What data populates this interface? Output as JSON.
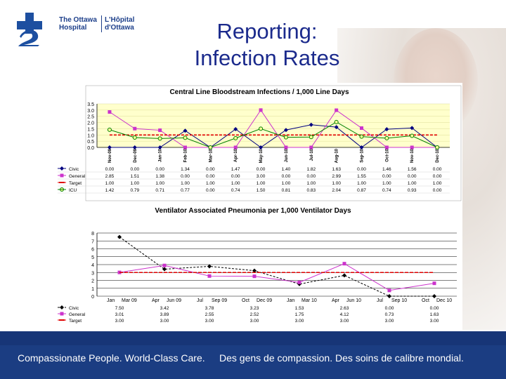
{
  "header": {
    "logo_en_line1": "The Ottawa",
    "logo_en_line2": "Hospital",
    "logo_fr_line1": "L'Hôpital",
    "logo_fr_line2": "d'Ottawa",
    "title_line1": "Reporting:",
    "title_line2": "Infection Rates"
  },
  "footer": {
    "english": "Compassionate People. World-Class Care.",
    "french": "Des gens de compassion. Des soins de calibre mondial."
  },
  "colors": {
    "brand_blue": "#1b3d82",
    "title_blue": "#1b2a8c",
    "civic": "#000080",
    "general": "#cc33cc",
    "target": "#e00000",
    "icu": "#008000",
    "plot_bg": "#ffffcc"
  },
  "chart_data": [
    {
      "type": "line",
      "title": "Central Line Bloodstream Infections  / 1,000 Line Days",
      "categories": [
        "Nov-09",
        "Dec-09",
        "Jan-10",
        "Feb-10",
        "Mar-10",
        "Apr-10",
        "May-10",
        "Jun-10",
        "Jul-10",
        "Aug-10",
        "Sep-10",
        "Oct-10",
        "Nov-10",
        "Dec-10"
      ],
      "ylim": [
        0,
        3.5
      ],
      "yticks": [
        "0.0",
        "0.5",
        "1.0",
        "1.5",
        "2.0",
        "2.5",
        "3.0",
        "3.5"
      ],
      "series": [
        {
          "name": "Civic",
          "color": "#000080",
          "values": [
            0.0,
            0.0,
            0.0,
            1.34,
            0.0,
            1.47,
            0.0,
            1.4,
            1.82,
            1.63,
            0.0,
            1.46,
            1.56,
            0.0
          ]
        },
        {
          "name": "General",
          "color": "#cc33cc",
          "values": [
            2.85,
            1.51,
            1.38,
            0.0,
            0.0,
            0.0,
            3.0,
            0.0,
            0.0,
            2.99,
            1.55,
            0.0,
            0.0,
            0.0
          ]
        },
        {
          "name": "Target",
          "color": "#e00000",
          "dashed": true,
          "values": [
            1.0,
            1.0,
            1.0,
            1.0,
            1.0,
            1.0,
            1.0,
            1.0,
            1.0,
            1.0,
            1.0,
            1.0,
            1.0,
            1.0
          ]
        },
        {
          "name": "ICU",
          "color": "#008000",
          "values": [
            1.42,
            0.79,
            0.71,
            0.77,
            0.0,
            0.74,
            1.5,
            0.81,
            0.83,
            2.04,
            0.87,
            0.74,
            0.93,
            0.0
          ]
        }
      ],
      "table": [
        {
          "name": "Civic",
          "values": [
            "0.00",
            "0.00",
            "0.00",
            "1.34",
            "0.00",
            "1.47",
            "0.00",
            "1.40",
            "1.82",
            "1.63",
            "0.00",
            "1.46",
            "1.56",
            "0.00"
          ]
        },
        {
          "name": "General",
          "values": [
            "2.85",
            "1.51",
            "1.38",
            "0.00",
            "0.00",
            "0.00",
            "3.00",
            "0.00",
            "0.00",
            "2.99",
            "1.55",
            "0.00",
            "0.00",
            "0.00"
          ]
        },
        {
          "name": "Target",
          "values": [
            "1.00",
            "1.00",
            "1.00",
            "1.00",
            "1.00",
            "1.00",
            "1.00",
            "1.00",
            "1.00",
            "1.00",
            "1.00",
            "1.00",
            "1.00",
            "1.00"
          ]
        },
        {
          "name": "ICU",
          "values": [
            "1.42",
            "0.79",
            "0.71",
            "0.77",
            "0.00",
            "0.74",
            "1.50",
            "0.81",
            "0.83",
            "2.04",
            "0.87",
            "0.74",
            "0.93",
            "0.00"
          ]
        }
      ]
    },
    {
      "type": "line",
      "title": "Ventilator Associated Pneumonia per 1,000 Ventilator Days",
      "categories": [
        "Jan - Mar 09",
        "Apr - Jun 09",
        "Jul - Sep 09",
        "Oct - Dec 09",
        "Jan - Mar 10",
        "Apr - Jun 10",
        "Jul - Sep 10",
        "Oct - Dec 10"
      ],
      "category_lines": [
        [
          "Jan",
          "Mar 09"
        ],
        [
          "Apr",
          "Jun 09"
        ],
        [
          "Jul",
          "Sep 09"
        ],
        [
          "Oct",
          "Dec 09"
        ],
        [
          "Jan",
          "Mar 10"
        ],
        [
          "Apr",
          "Jun 10"
        ],
        [
          "Jul",
          "Sep 10"
        ],
        [
          "Oct",
          "Dec 10"
        ]
      ],
      "ylim": [
        0,
        8
      ],
      "yticks": [
        "0",
        "1",
        "2",
        "3",
        "4",
        "5",
        "6",
        "7",
        "8"
      ],
      "series": [
        {
          "name": "Civic",
          "color": "#000000",
          "dashed": true,
          "values": [
            7.5,
            3.42,
            3.78,
            3.23,
            1.53,
            2.63,
            0.0,
            0.0
          ]
        },
        {
          "name": "General",
          "color": "#cc33cc",
          "values": [
            3.01,
            3.89,
            2.55,
            2.52,
            1.75,
            4.12,
            0.73,
            1.63
          ]
        },
        {
          "name": "Target",
          "color": "#e00000",
          "dashed": true,
          "values": [
            3.0,
            3.0,
            3.0,
            3.0,
            3.0,
            3.0,
            3.0,
            3.0
          ]
        }
      ],
      "table": [
        {
          "name": "Civic",
          "values": [
            "7.50",
            "3.42",
            "3.78",
            "3.23",
            "1.53",
            "2.63",
            "0.00",
            "0.00"
          ]
        },
        {
          "name": "General",
          "values": [
            "3.01",
            "3.89",
            "2.55",
            "2.52",
            "1.75",
            "4.12",
            "0.73",
            "1.63"
          ]
        },
        {
          "name": "Target",
          "values": [
            "3.00",
            "3.00",
            "3.00",
            "3.00",
            "3.00",
            "3.00",
            "3.00",
            "3.00"
          ]
        }
      ]
    }
  ]
}
